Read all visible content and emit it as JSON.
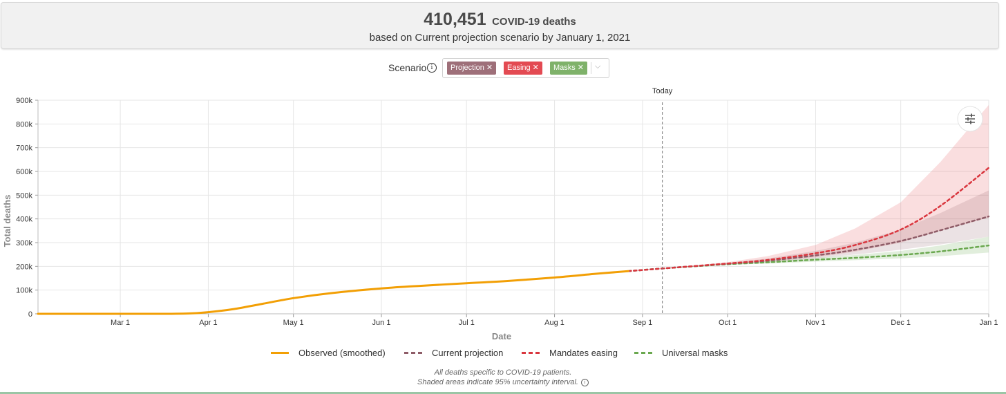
{
  "header": {
    "count": "410,451",
    "count_label": "COVID-19 deaths",
    "subtitle": "based on Current projection scenario by January 1, 2021"
  },
  "scenario": {
    "label": "Scenario",
    "chips": [
      {
        "label": "Projection",
        "color": "#9e6f79"
      },
      {
        "label": "Easing",
        "color": "#e34a52"
      },
      {
        "label": "Masks",
        "color": "#7fb26a"
      }
    ]
  },
  "chart_data": {
    "type": "line",
    "xlabel": "Date",
    "ylabel": "Total deaths",
    "today_label": "Today",
    "today_date": "2020-09-08",
    "x_range": [
      "2020-02-01",
      "2021-01-01"
    ],
    "ylim": [
      0,
      900000
    ],
    "y_ticks": [
      {
        "value": 0,
        "label": "0"
      },
      {
        "value": 100000,
        "label": "100k"
      },
      {
        "value": 200000,
        "label": "200k"
      },
      {
        "value": 300000,
        "label": "300k"
      },
      {
        "value": 400000,
        "label": "400k"
      },
      {
        "value": 500000,
        "label": "500k"
      },
      {
        "value": 600000,
        "label": "600k"
      },
      {
        "value": 700000,
        "label": "700k"
      },
      {
        "value": 800000,
        "label": "800k"
      },
      {
        "value": 900000,
        "label": "900k"
      }
    ],
    "x_ticks": [
      {
        "date": "2020-03-01",
        "label": "Mar 1"
      },
      {
        "date": "2020-04-01",
        "label": "Apr 1"
      },
      {
        "date": "2020-05-01",
        "label": "May 1"
      },
      {
        "date": "2020-06-01",
        "label": "Jun 1"
      },
      {
        "date": "2020-07-01",
        "label": "Jul 1"
      },
      {
        "date": "2020-08-01",
        "label": "Aug 1"
      },
      {
        "date": "2020-09-01",
        "label": "Sep 1"
      },
      {
        "date": "2020-10-01",
        "label": "Oct 1"
      },
      {
        "date": "2020-11-01",
        "label": "Nov 1"
      },
      {
        "date": "2020-12-01",
        "label": "Dec 1"
      },
      {
        "date": "2021-01-01",
        "label": "Jan 1"
      }
    ],
    "grid": true,
    "legend_position": "bottom",
    "series": [
      {
        "name": "Observed (smoothed)",
        "color": "#f29f05",
        "style": "solid",
        "points": [
          [
            "2020-02-01",
            0
          ],
          [
            "2020-03-01",
            0
          ],
          [
            "2020-03-15",
            100
          ],
          [
            "2020-03-25",
            1500
          ],
          [
            "2020-04-01",
            7000
          ],
          [
            "2020-04-10",
            20000
          ],
          [
            "2020-04-20",
            42000
          ],
          [
            "2020-05-01",
            66000
          ],
          [
            "2020-05-15",
            88000
          ],
          [
            "2020-06-01",
            107000
          ],
          [
            "2020-06-15",
            118000
          ],
          [
            "2020-07-01",
            129000
          ],
          [
            "2020-07-15",
            138000
          ],
          [
            "2020-08-01",
            153000
          ],
          [
            "2020-08-15",
            168000
          ],
          [
            "2020-08-27",
            180000
          ]
        ]
      },
      {
        "name": "Current projection",
        "color": "#8e5c67",
        "style": "dashed",
        "points": [
          [
            "2020-08-27",
            180000
          ],
          [
            "2020-09-08",
            191000
          ],
          [
            "2020-10-01",
            211000
          ],
          [
            "2020-10-15",
            224000
          ],
          [
            "2020-11-01",
            246000
          ],
          [
            "2020-11-15",
            270000
          ],
          [
            "2020-12-01",
            307000
          ],
          [
            "2020-12-15",
            352000
          ],
          [
            "2021-01-01",
            410451
          ]
        ],
        "band_upper": [
          [
            "2020-09-08",
            192000
          ],
          [
            "2020-10-01",
            215000
          ],
          [
            "2020-10-15",
            233000
          ],
          [
            "2020-11-01",
            265000
          ],
          [
            "2020-11-15",
            300000
          ],
          [
            "2020-12-01",
            355000
          ],
          [
            "2020-12-15",
            425000
          ],
          [
            "2021-01-01",
            520000
          ]
        ],
        "band_lower": [
          [
            "2020-09-08",
            190000
          ],
          [
            "2020-10-01",
            208000
          ],
          [
            "2020-10-15",
            217000
          ],
          [
            "2020-11-01",
            234000
          ],
          [
            "2020-11-15",
            250000
          ],
          [
            "2020-12-01",
            270000
          ],
          [
            "2020-12-15",
            292000
          ],
          [
            "2021-01-01",
            325000
          ]
        ]
      },
      {
        "name": "Mandates easing",
        "color": "#d9363e",
        "style": "dashed",
        "points": [
          [
            "2020-08-27",
            180000
          ],
          [
            "2020-09-08",
            191000
          ],
          [
            "2020-10-01",
            212000
          ],
          [
            "2020-10-15",
            227000
          ],
          [
            "2020-11-01",
            255000
          ],
          [
            "2020-11-15",
            290000
          ],
          [
            "2020-12-01",
            355000
          ],
          [
            "2020-12-15",
            455000
          ],
          [
            "2021-01-01",
            615000
          ]
        ],
        "band_upper": [
          [
            "2020-09-08",
            192000
          ],
          [
            "2020-10-01",
            218000
          ],
          [
            "2020-10-15",
            243000
          ],
          [
            "2020-11-01",
            290000
          ],
          [
            "2020-11-15",
            360000
          ],
          [
            "2020-12-01",
            470000
          ],
          [
            "2020-12-15",
            640000
          ],
          [
            "2021-01-01",
            880000
          ]
        ],
        "band_lower": [
          [
            "2020-09-08",
            190000
          ],
          [
            "2020-10-01",
            208000
          ],
          [
            "2020-10-15",
            220000
          ],
          [
            "2020-11-01",
            238000
          ],
          [
            "2020-11-15",
            262000
          ],
          [
            "2020-12-01",
            300000
          ],
          [
            "2020-12-15",
            350000
          ],
          [
            "2021-01-01",
            405000
          ]
        ]
      },
      {
        "name": "Universal masks",
        "color": "#6aa84f",
        "style": "dashed",
        "points": [
          [
            "2020-08-27",
            180000
          ],
          [
            "2020-09-08",
            191000
          ],
          [
            "2020-10-01",
            209000
          ],
          [
            "2020-10-15",
            217000
          ],
          [
            "2020-11-01",
            228000
          ],
          [
            "2020-11-15",
            236000
          ],
          [
            "2020-12-01",
            248000
          ],
          [
            "2020-12-15",
            263000
          ],
          [
            "2021-01-01",
            288000
          ]
        ],
        "band_upper": [
          [
            "2020-09-08",
            192000
          ],
          [
            "2020-10-01",
            212000
          ],
          [
            "2020-10-15",
            222000
          ],
          [
            "2020-11-01",
            236000
          ],
          [
            "2020-11-15",
            248000
          ],
          [
            "2020-12-01",
            265000
          ],
          [
            "2020-12-15",
            288000
          ],
          [
            "2021-01-01",
            325000
          ]
        ],
        "band_lower": [
          [
            "2020-09-08",
            190000
          ],
          [
            "2020-10-01",
            206000
          ],
          [
            "2020-10-15",
            212000
          ],
          [
            "2020-11-01",
            220000
          ],
          [
            "2020-11-15",
            226000
          ],
          [
            "2020-12-01",
            234000
          ],
          [
            "2020-12-15",
            243000
          ],
          [
            "2021-01-01",
            258000
          ]
        ]
      }
    ]
  },
  "legend": {
    "items": [
      {
        "label": "Observed (smoothed)",
        "color": "#f29f05",
        "style": "solid"
      },
      {
        "label": "Current projection",
        "color": "#8e5c67",
        "style": "dashed"
      },
      {
        "label": "Mandates easing",
        "color": "#d9363e",
        "style": "dashed"
      },
      {
        "label": "Universal masks",
        "color": "#6aa84f",
        "style": "dashed"
      }
    ]
  },
  "footnote": {
    "line1": "All deaths specific to COVID-19 patients.",
    "line2": "Shaded areas indicate 95% uncertainty interval."
  },
  "icons": {
    "info": "info-icon",
    "settings": "sliders-icon",
    "dropdown": "chevron-down-icon"
  }
}
